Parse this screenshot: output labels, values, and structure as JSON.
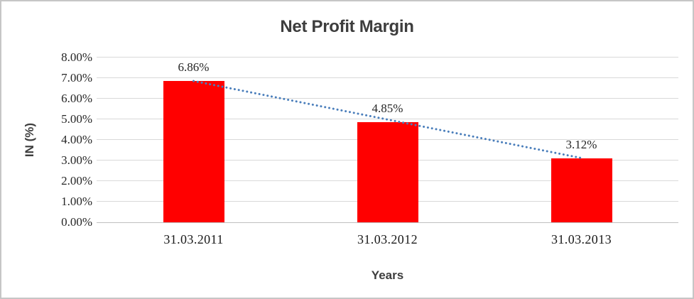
{
  "chart_data": {
    "type": "bar",
    "title": "Net Profit Margin",
    "categories": [
      "31.03.2011",
      "31.03.2012",
      "31.03.2013"
    ],
    "values": [
      6.86,
      4.85,
      3.12
    ],
    "data_labels": [
      "6.86%",
      "4.85%",
      "3.12%"
    ],
    "xlabel": "Years",
    "ylabel": "IN (%)",
    "ylim": [
      0,
      8
    ],
    "ytick_step": 1,
    "ytick_labels": [
      "0.00%",
      "1.00%",
      "2.00%",
      "3.00%",
      "4.00%",
      "5.00%",
      "6.00%",
      "7.00%",
      "8.00%"
    ],
    "grid": true,
    "legend_position": "none",
    "trendline": {
      "type": "linear",
      "style": "dotted",
      "from_value": 6.86,
      "to_value": 3.12
    },
    "colors": {
      "bar": "#ff0000",
      "trendline": "#4a7ebb",
      "gridline": "#d9d9d9",
      "axis_line": "#bfbfbf",
      "title_text": "#3d3d3d",
      "tick_text": "#262626",
      "frame_border": "#c6c6c6"
    }
  }
}
